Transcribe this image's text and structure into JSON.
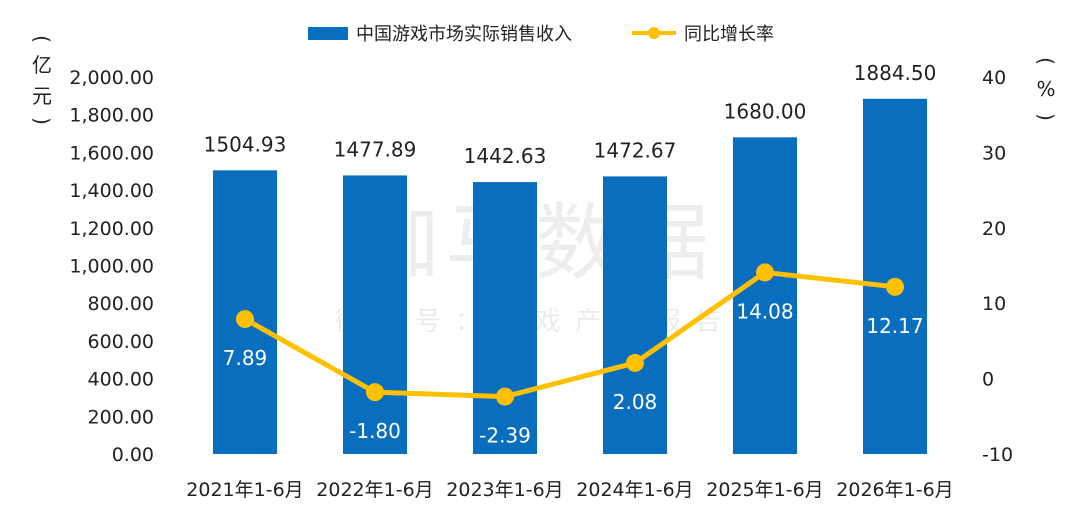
{
  "chart_data": {
    "type": "bar",
    "categories": [
      "2021年1-6月",
      "2022年1-6月",
      "2023年1-6月",
      "2024年1-6月",
      "2025年1-6月",
      "2026年1-6月"
    ],
    "series": [
      {
        "name": "中国游戏市场实际销售收入",
        "type": "bar",
        "axis": "left",
        "color": "#0a6ebf",
        "values": [
          1504.93,
          1477.89,
          1442.63,
          1472.67,
          1680.0,
          1884.5
        ],
        "labels": [
          "1504.93",
          "1477.89",
          "1442.63",
          "1472.67",
          "1680.00",
          "1884.50"
        ]
      },
      {
        "name": "同比增长率",
        "type": "line",
        "axis": "right",
        "color": "#ffc000",
        "values": [
          7.89,
          -1.8,
          -2.39,
          2.08,
          14.08,
          12.17
        ],
        "labels": [
          "7.89",
          "-1.80",
          "-2.39",
          "2.08",
          "14.08",
          "12.17"
        ]
      }
    ],
    "y_left": {
      "label": "亿元",
      "range": [
        0,
        2000
      ],
      "ticks": [
        "0.00",
        "200.00",
        "400.00",
        "600.00",
        "800.00",
        "1,000.00",
        "1,200.00",
        "1,400.00",
        "1,600.00",
        "1,800.00",
        "2,000.00"
      ]
    },
    "y_right": {
      "label": "%",
      "range": [
        -10,
        40
      ],
      "ticks": [
        "-10",
        "0",
        "10",
        "20",
        "30",
        "40"
      ]
    },
    "legend": "top-center",
    "grid": false
  },
  "watermark": {
    "main": "伽马数据",
    "sub": "微信号：游戏产业报告"
  }
}
